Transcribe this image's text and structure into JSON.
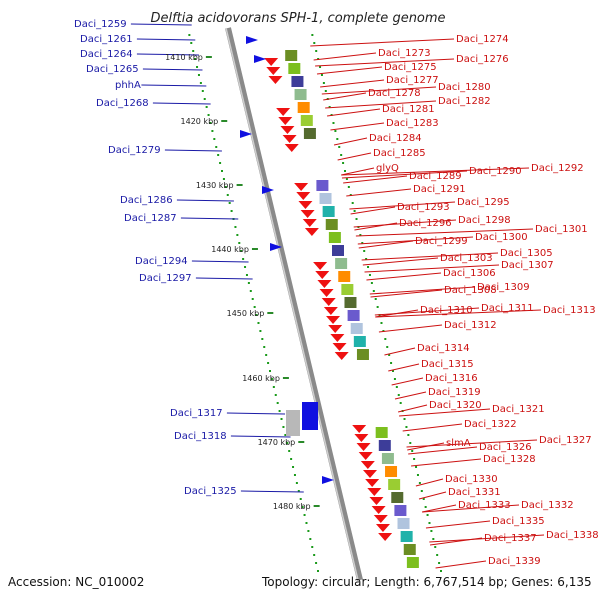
{
  "title": "Delftia acidovorans SPH-1, complete genome",
  "accession": "Accession: NC_010002",
  "topology": "Topology: circular; Length: 6,767,514 bp; Genes: 6,135",
  "colors": {
    "forward_gene": "#1010e0",
    "reverse_gene": "#ee1111",
    "forward_label": "#1a1aa6",
    "reverse_label": "#cc1111",
    "gc_track": "#1a9a1a",
    "backbone": "#8a8a8a"
  },
  "scale": [
    {
      "label": "1410 kbp"
    },
    {
      "label": "1420 kbp"
    },
    {
      "label": "1430 kbp"
    },
    {
      "label": "1440 kbp"
    },
    {
      "label": "1450 kbp"
    },
    {
      "label": "1460 kbp"
    },
    {
      "label": "1470 kbp"
    },
    {
      "label": "1480 kbp"
    }
  ],
  "forward_genes": [
    {
      "name": "Daci_1259"
    },
    {
      "name": "Daci_1261"
    },
    {
      "name": "Daci_1264"
    },
    {
      "name": "Daci_1265"
    },
    {
      "name": "phhA"
    },
    {
      "name": "Daci_1268"
    },
    {
      "name": "Daci_1279"
    },
    {
      "name": "Daci_1286"
    },
    {
      "name": "Daci_1287"
    },
    {
      "name": "Daci_1294"
    },
    {
      "name": "Daci_1297"
    },
    {
      "name": "Daci_1317"
    },
    {
      "name": "Daci_1318"
    },
    {
      "name": "Daci_1325"
    }
  ],
  "reverse_genes": [
    {
      "name": "Daci_1274"
    },
    {
      "name": "Daci_1273"
    },
    {
      "name": "Daci_1276"
    },
    {
      "name": "Daci_1275"
    },
    {
      "name": "Daci_1277"
    },
    {
      "name": "Daci_1280"
    },
    {
      "name": "Daci_1278"
    },
    {
      "name": "Daci_1282"
    },
    {
      "name": "Daci_1281"
    },
    {
      "name": "Daci_1283"
    },
    {
      "name": "Daci_1284"
    },
    {
      "name": "Daci_1285"
    },
    {
      "name": "glyQ"
    },
    {
      "name": "Daci_1290"
    },
    {
      "name": "Daci_1292"
    },
    {
      "name": "Daci_1289"
    },
    {
      "name": "Daci_1291"
    },
    {
      "name": "Daci_1295"
    },
    {
      "name": "Daci_1293"
    },
    {
      "name": "Daci_1298"
    },
    {
      "name": "Daci_1296"
    },
    {
      "name": "Daci_1301"
    },
    {
      "name": "Daci_1300"
    },
    {
      "name": "Daci_1299"
    },
    {
      "name": "Daci_1305"
    },
    {
      "name": "Daci_1303"
    },
    {
      "name": "Daci_1307"
    },
    {
      "name": "Daci_1306"
    },
    {
      "name": "Daci_1309"
    },
    {
      "name": "Daci_1308"
    },
    {
      "name": "Daci_1313"
    },
    {
      "name": "Daci_1311"
    },
    {
      "name": "Daci_1310"
    },
    {
      "name": "Daci_1312"
    },
    {
      "name": "Daci_1314"
    },
    {
      "name": "Daci_1315"
    },
    {
      "name": "Daci_1316"
    },
    {
      "name": "Daci_1319"
    },
    {
      "name": "Daci_1320"
    },
    {
      "name": "Daci_1321"
    },
    {
      "name": "Daci_1322"
    },
    {
      "name": "Daci_1327"
    },
    {
      "name": "slmA"
    },
    {
      "name": "Daci_1326"
    },
    {
      "name": "Daci_1328"
    },
    {
      "name": "Daci_1330"
    },
    {
      "name": "Daci_1331"
    },
    {
      "name": "Daci_1333"
    },
    {
      "name": "Daci_1332"
    },
    {
      "name": "Daci_1335"
    },
    {
      "name": "Daci_1338"
    },
    {
      "name": "Daci_1337"
    },
    {
      "name": "Daci_1339"
    }
  ]
}
